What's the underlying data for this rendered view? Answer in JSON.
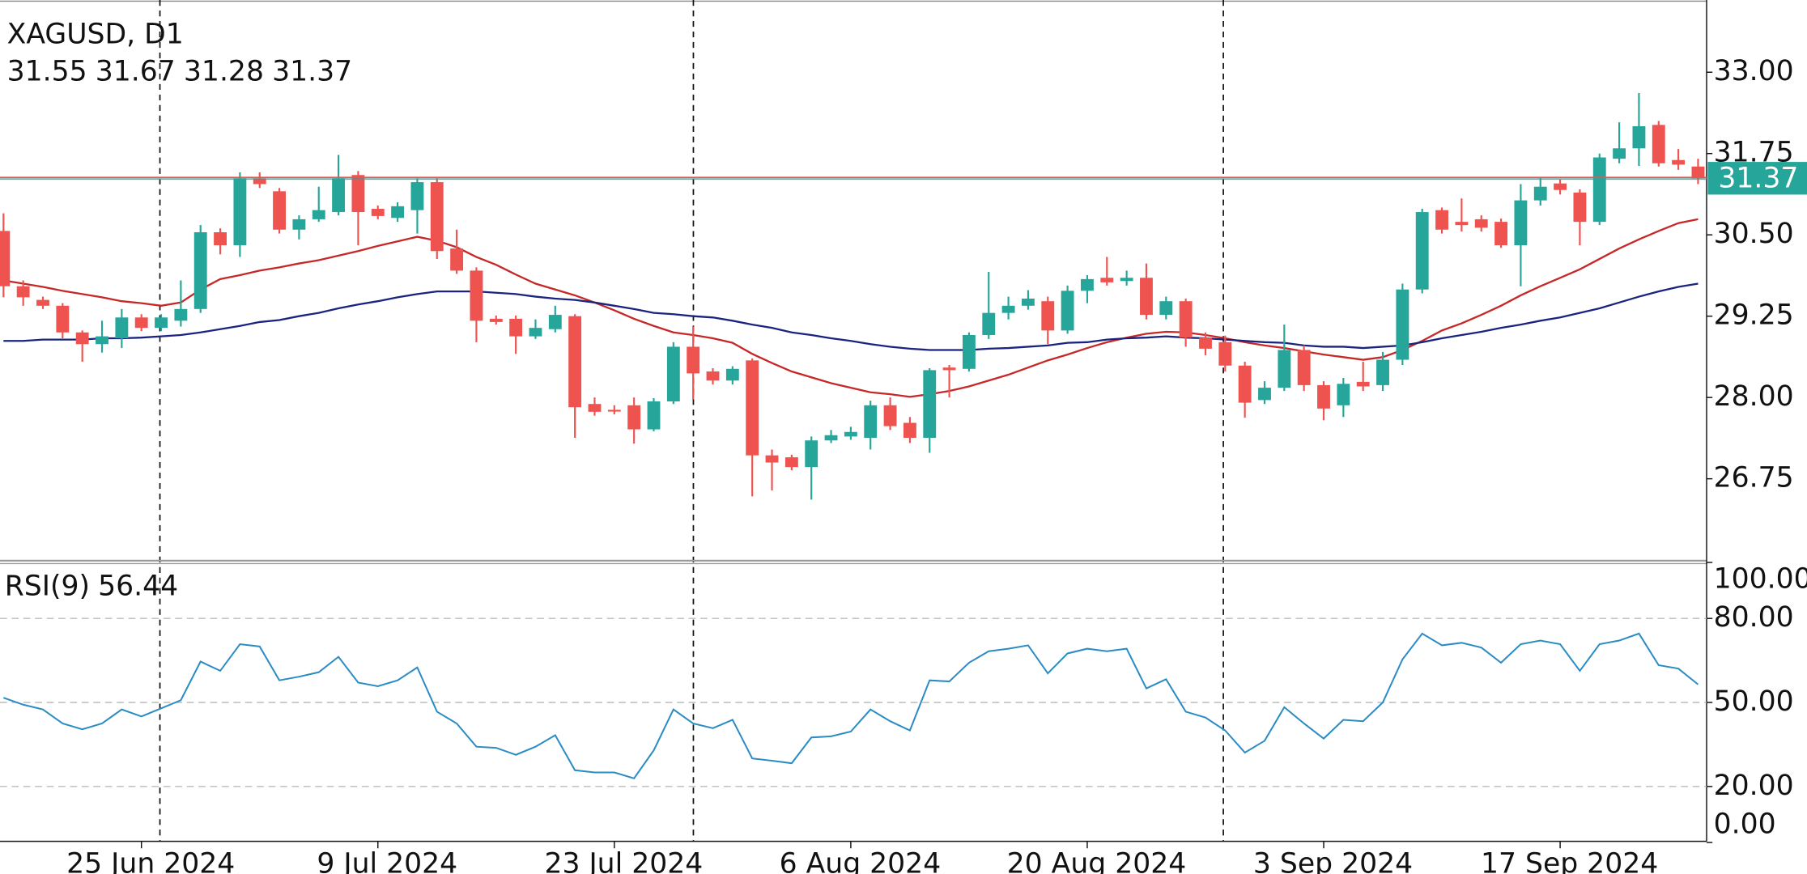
{
  "chart_data": [
    {
      "type": "candlestick",
      "title": "XAGUSD, D1",
      "categories": [
        null,
        null,
        null,
        null,
        null,
        null,
        null,
        "25 Jun 2024",
        null,
        null,
        null,
        null,
        null,
        null,
        null,
        null,
        null,
        null,
        null,
        "9 Jul 2024",
        null,
        null,
        null,
        null,
        null,
        null,
        null,
        null,
        null,
        null,
        null,
        "23 Jul 2024",
        null,
        null,
        null,
        null,
        null,
        null,
        null,
        null,
        null,
        null,
        null,
        "6 Aug 2024",
        null,
        null,
        null,
        null,
        null,
        null,
        null,
        null,
        null,
        null,
        null,
        "20 Aug 2024",
        null,
        null,
        null,
        null,
        null,
        null,
        null,
        null,
        null,
        null,
        null,
        "3 Sep 2024",
        null,
        null,
        null,
        null,
        null,
        null,
        null,
        null,
        null,
        null,
        null,
        "17 Sep 2024",
        null,
        null,
        null,
        null,
        null,
        null,
        null
      ],
      "open": [
        30.56,
        29.71,
        29.5,
        29.41,
        29.0,
        28.82,
        28.91,
        29.23,
        29.07,
        29.18,
        29.36,
        30.54,
        30.34,
        31.37,
        31.17,
        30.58,
        30.74,
        30.85,
        31.42,
        30.9,
        30.76,
        30.88,
        31.31,
        30.29,
        29.95,
        29.21,
        29.21,
        28.94,
        29.05,
        29.25,
        27.9,
        27.81,
        27.88,
        27.51,
        27.94,
        28.78,
        28.4,
        28.26,
        28.57,
        27.11,
        27.08,
        26.93,
        27.34,
        27.4,
        27.38,
        27.88,
        27.61,
        27.38,
        28.46,
        28.44,
        28.96,
        29.3,
        29.41,
        29.48,
        29.03,
        29.64,
        29.84,
        29.79,
        29.84,
        29.27,
        29.48,
        28.92,
        28.85,
        28.49,
        27.96,
        28.15,
        28.73,
        28.19,
        27.88,
        28.24,
        28.19,
        28.58,
        29.66,
        30.88,
        30.7,
        30.74,
        30.7,
        30.34,
        31.03,
        31.29,
        31.15,
        30.7,
        31.67,
        31.83,
        32.19,
        31.65,
        31.55
      ],
      "high": [
        30.83,
        29.8,
        29.55,
        29.45,
        29.03,
        29.18,
        29.36,
        29.28,
        29.28,
        29.8,
        30.65,
        30.6,
        31.46,
        31.46,
        31.22,
        30.8,
        31.24,
        31.73,
        31.48,
        30.95,
        31.0,
        31.37,
        31.37,
        30.58,
        30.0,
        29.26,
        29.26,
        29.2,
        29.41,
        29.28,
        28.0,
        27.88,
        28.0,
        27.99,
        28.85,
        29.09,
        28.45,
        28.48,
        28.6,
        27.2,
        27.12,
        27.4,
        27.5,
        27.55,
        27.95,
        28.0,
        27.7,
        28.45,
        28.5,
        29.0,
        29.93,
        29.55,
        29.65,
        29.55,
        29.72,
        29.88,
        30.16,
        29.95,
        30.06,
        29.55,
        29.52,
        29.0,
        28.95,
        28.55,
        28.25,
        29.12,
        28.8,
        28.25,
        28.3,
        28.55,
        28.7,
        29.75,
        30.9,
        30.92,
        31.06,
        30.8,
        30.75,
        31.28,
        31.38,
        31.35,
        31.2,
        31.75,
        32.23,
        32.68,
        32.25,
        31.82,
        31.67
      ],
      "low": [
        29.54,
        29.41,
        29.36,
        28.91,
        28.55,
        28.69,
        28.76,
        29.02,
        29.02,
        29.09,
        29.3,
        30.2,
        30.16,
        31.22,
        30.52,
        30.43,
        30.7,
        30.8,
        30.34,
        30.74,
        30.7,
        30.52,
        30.13,
        29.9,
        28.85,
        29.12,
        28.67,
        28.9,
        29.0,
        27.38,
        27.72,
        27.74,
        27.29,
        27.48,
        27.9,
        27.97,
        28.2,
        28.2,
        26.48,
        26.57,
        26.88,
        26.43,
        27.3,
        27.35,
        27.2,
        27.5,
        27.3,
        27.15,
        28.0,
        28.4,
        28.9,
        29.2,
        29.35,
        28.82,
        28.98,
        29.45,
        29.72,
        29.72,
        29.2,
        29.2,
        28.78,
        28.65,
        28.4,
        27.69,
        27.9,
        28.1,
        28.1,
        27.65,
        27.7,
        28.1,
        28.1,
        28.5,
        29.6,
        30.52,
        30.55,
        30.55,
        30.3,
        29.71,
        30.95,
        31.12,
        30.34,
        30.65,
        31.6,
        31.56,
        31.55,
        31.5,
        31.28
      ],
      "close": [
        29.71,
        29.54,
        29.41,
        29.0,
        28.82,
        28.94,
        29.23,
        29.07,
        29.23,
        29.36,
        30.54,
        30.34,
        31.37,
        31.28,
        30.58,
        30.74,
        30.88,
        31.37,
        30.85,
        30.79,
        30.94,
        31.31,
        30.25,
        29.95,
        29.18,
        29.16,
        28.94,
        29.07,
        29.27,
        27.85,
        27.78,
        27.8,
        27.51,
        27.94,
        28.78,
        28.37,
        28.26,
        28.44,
        27.11,
        27.0,
        26.93,
        27.34,
        27.42,
        27.47,
        27.88,
        27.56,
        27.38,
        28.42,
        28.42,
        28.96,
        29.3,
        29.41,
        29.52,
        29.03,
        29.64,
        29.82,
        29.77,
        29.84,
        29.27,
        29.48,
        28.92,
        28.75,
        28.49,
        27.92,
        28.15,
        28.73,
        28.19,
        27.83,
        28.21,
        28.17,
        28.58,
        29.66,
        30.85,
        30.58,
        30.65,
        30.61,
        30.34,
        31.03,
        31.24,
        31.19,
        30.7,
        31.69,
        31.83,
        32.17,
        31.6,
        31.58,
        31.37
      ],
      "up_color": "#26a69a",
      "down_color": "#ef5350",
      "series": [
        {
          "color": "#c62828",
          "values": [
            29.8,
            29.75,
            29.7,
            29.64,
            29.59,
            29.54,
            29.48,
            29.45,
            29.41,
            29.46,
            29.66,
            29.82,
            29.88,
            29.95,
            30.0,
            30.06,
            30.11,
            30.18,
            30.25,
            30.33,
            30.4,
            30.47,
            30.41,
            30.31,
            30.16,
            30.04,
            29.89,
            29.75,
            29.66,
            29.57,
            29.46,
            29.34,
            29.21,
            29.1,
            29.0,
            28.96,
            28.91,
            28.84,
            28.67,
            28.53,
            28.4,
            28.31,
            28.22,
            28.15,
            28.08,
            28.05,
            28.01,
            28.05,
            28.1,
            28.17,
            28.26,
            28.35,
            28.46,
            28.57,
            28.66,
            28.76,
            28.85,
            28.92,
            28.98,
            29.01,
            29.0,
            28.96,
            28.91,
            28.85,
            28.8,
            28.76,
            28.71,
            28.66,
            28.62,
            28.58,
            28.62,
            28.73,
            28.87,
            29.03,
            29.14,
            29.27,
            29.41,
            29.57,
            29.71,
            29.84,
            29.97,
            30.13,
            30.29,
            30.43,
            30.56,
            30.68,
            30.74
          ]
        },
        {
          "color": "#1a237e",
          "values": [
            28.87,
            28.87,
            28.89,
            28.89,
            28.89,
            28.91,
            28.91,
            28.92,
            28.94,
            28.96,
            29.0,
            29.05,
            29.1,
            29.16,
            29.19,
            29.25,
            29.3,
            29.37,
            29.43,
            29.48,
            29.54,
            29.59,
            29.63,
            29.63,
            29.63,
            29.61,
            29.59,
            29.55,
            29.52,
            29.5,
            29.46,
            29.41,
            29.36,
            29.3,
            29.28,
            29.25,
            29.23,
            29.18,
            29.12,
            29.07,
            29.0,
            28.96,
            28.91,
            28.87,
            28.82,
            28.78,
            28.75,
            28.73,
            28.73,
            28.73,
            28.75,
            28.76,
            28.78,
            28.8,
            28.84,
            28.85,
            28.89,
            28.91,
            28.92,
            28.94,
            28.92,
            28.91,
            28.89,
            28.87,
            28.85,
            28.84,
            28.8,
            28.78,
            28.78,
            28.76,
            28.78,
            28.8,
            28.85,
            28.91,
            28.96,
            29.01,
            29.07,
            29.12,
            29.18,
            29.23,
            29.3,
            29.37,
            29.46,
            29.55,
            29.63,
            29.7,
            29.75
          ]
        }
      ],
      "ylim": [
        25.5,
        34.11
      ],
      "yticks": [
        26.75,
        {
          "value": 28,
          "label": "28.00"
        },
        29.25,
        {
          "value": 30.5,
          "label": "30.50"
        },
        31.75,
        {
          "value": 33,
          "label": "33.00"
        }
      ]
    },
    {
      "type": "line",
      "title": "RSI(9)",
      "color": "#2b8cc4",
      "values": [
        51.7,
        49.2,
        47.5,
        42.5,
        40.4,
        42.5,
        47.5,
        45.0,
        47.9,
        50.8,
        64.6,
        61.3,
        70.8,
        70.0,
        57.9,
        59.2,
        60.8,
        66.3,
        57.1,
        55.8,
        57.9,
        62.5,
        46.7,
        42.5,
        34.2,
        33.8,
        31.3,
        34.2,
        38.3,
        25.8,
        25.0,
        25.0,
        22.9,
        32.9,
        47.5,
        42.5,
        40.8,
        43.8,
        30.0,
        29.2,
        28.3,
        37.5,
        37.9,
        39.6,
        47.5,
        43.3,
        40.0,
        57.9,
        57.5,
        64.2,
        68.3,
        69.2,
        70.4,
        60.4,
        67.5,
        69.2,
        68.3,
        69.2,
        55.0,
        58.3,
        46.7,
        44.6,
        40.0,
        32.1,
        36.3,
        48.3,
        42.5,
        37.1,
        43.8,
        43.3,
        50.0,
        65.4,
        74.6,
        70.4,
        71.3,
        69.6,
        64.2,
        70.8,
        72.1,
        70.8,
        61.3,
        70.8,
        72.1,
        74.6,
        63.3,
        62.1,
        56.44
      ],
      "ylim": [
        0,
        100
      ],
      "yticks": [
        {
          "value": 0,
          "label": "0.00"
        },
        {
          "value": 20,
          "label": "20.00"
        },
        {
          "value": 50,
          "label": "50.00"
        },
        {
          "value": 80,
          "label": "80.00"
        },
        {
          "value": 100,
          "label": "100.00"
        }
      ],
      "grid": true
    }
  ]
}
